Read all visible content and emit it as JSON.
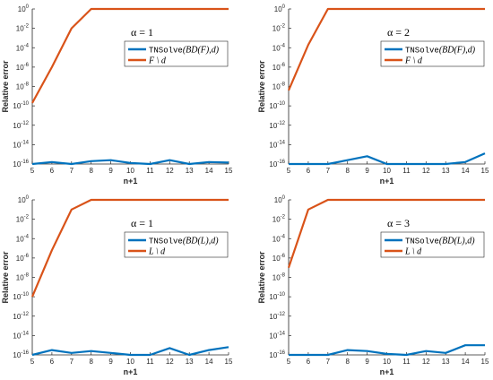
{
  "chart_data": [
    {
      "type": "line",
      "annotation": "α = 1",
      "xlabel": "n+1",
      "ylabel": "Relative error",
      "x": [
        5,
        6,
        7,
        8,
        9,
        10,
        11,
        12,
        13,
        14,
        15
      ],
      "xlim": [
        5,
        15
      ],
      "ylim_exponent": [
        -16,
        0
      ],
      "yscale": "log",
      "y_tick_exponents": [
        -16,
        -14,
        -12,
        -10,
        -8,
        -6,
        -4,
        -2,
        0
      ],
      "x_ticks": [
        5,
        6,
        7,
        8,
        9,
        10,
        11,
        12,
        13,
        14,
        15
      ],
      "legend_position": "top-right",
      "series": [
        {
          "name": "TNSolve(BD(F),d)",
          "mono": "TNSolve",
          "rest": "(BD(F),d)",
          "color": "#0072BD",
          "y_exponent": [
            -16,
            -15.8,
            -16,
            -15.7,
            -15.6,
            -15.9,
            -16,
            -15.6,
            -16,
            -15.8,
            -15.85
          ]
        },
        {
          "name": "F \\ d",
          "color": "#D95319",
          "y_exponent": [
            -9.7,
            -6,
            -2,
            0,
            0,
            0,
            0,
            0,
            0,
            0,
            0
          ]
        }
      ]
    },
    {
      "type": "line",
      "annotation": "α = 2",
      "xlabel": "n+1",
      "ylabel": "Relative error",
      "x": [
        5,
        6,
        7,
        8,
        9,
        10,
        11,
        12,
        13,
        14,
        15
      ],
      "xlim": [
        5,
        15
      ],
      "ylim_exponent": [
        -16,
        0
      ],
      "yscale": "log",
      "y_tick_exponents": [
        -16,
        -14,
        -12,
        -10,
        -8,
        -6,
        -4,
        -2,
        0
      ],
      "x_ticks": [
        5,
        6,
        7,
        8,
        9,
        10,
        11,
        12,
        13,
        14,
        15
      ],
      "legend_position": "top-right",
      "series": [
        {
          "name": "TNSolve(BD(F),d)",
          "mono": "TNSolve",
          "rest": "(BD(F),d)",
          "color": "#0072BD",
          "y_exponent": [
            -16,
            -16,
            -16,
            -15.6,
            -15.2,
            -16,
            -16,
            -16,
            -16,
            -15.8,
            -14.9
          ]
        },
        {
          "name": "F \\ d",
          "color": "#D95319",
          "y_exponent": [
            -8.4,
            -3.7,
            0,
            0,
            0,
            0,
            0,
            0,
            0,
            0,
            0
          ]
        }
      ]
    },
    {
      "type": "line",
      "annotation": "α = 1",
      "xlabel": "n+1",
      "ylabel": "Relative error",
      "x": [
        5,
        6,
        7,
        8,
        9,
        10,
        11,
        12,
        13,
        14,
        15
      ],
      "xlim": [
        5,
        15
      ],
      "ylim_exponent": [
        -16,
        0
      ],
      "yscale": "log",
      "y_tick_exponents": [
        -16,
        -14,
        -12,
        -10,
        -8,
        -6,
        -4,
        -2,
        0
      ],
      "x_ticks": [
        5,
        6,
        7,
        8,
        9,
        10,
        11,
        12,
        13,
        14,
        15
      ],
      "legend_position": "top-right",
      "series": [
        {
          "name": "TNSolve(BD(L),d)",
          "mono": "TNSolve",
          "rest": "(BD(L),d)",
          "color": "#0072BD",
          "y_exponent": [
            -16,
            -15.5,
            -15.8,
            -15.6,
            -15.8,
            -16,
            -16,
            -15.3,
            -16,
            -15.5,
            -15.2
          ]
        },
        {
          "name": "L \\ d",
          "color": "#D95319",
          "y_exponent": [
            -10,
            -5.2,
            -1,
            0,
            0,
            0,
            0,
            0,
            0,
            0,
            0
          ]
        }
      ]
    },
    {
      "type": "line",
      "annotation": "α = 3",
      "xlabel": "n+1",
      "ylabel": "Relative error",
      "x": [
        5,
        6,
        7,
        8,
        9,
        10,
        11,
        12,
        13,
        14,
        15
      ],
      "xlim": [
        5,
        15
      ],
      "ylim_exponent": [
        -16,
        0
      ],
      "yscale": "log",
      "y_tick_exponents": [
        -16,
        -14,
        -12,
        -10,
        -8,
        -6,
        -4,
        -2,
        0
      ],
      "x_ticks": [
        5,
        6,
        7,
        8,
        9,
        10,
        11,
        12,
        13,
        14,
        15
      ],
      "legend_position": "top-right",
      "series": [
        {
          "name": "TNSolve(BD(L),d)",
          "mono": "TNSolve",
          "rest": "(BD(L),d)",
          "color": "#0072BD",
          "y_exponent": [
            -16,
            -16,
            -16,
            -15.5,
            -15.6,
            -15.9,
            -16,
            -15.6,
            -15.8,
            -15,
            -15
          ]
        },
        {
          "name": "L \\ d",
          "color": "#D95319",
          "y_exponent": [
            -7,
            -1,
            0,
            0,
            0,
            0,
            0,
            0,
            0,
            0,
            0
          ]
        }
      ]
    }
  ]
}
